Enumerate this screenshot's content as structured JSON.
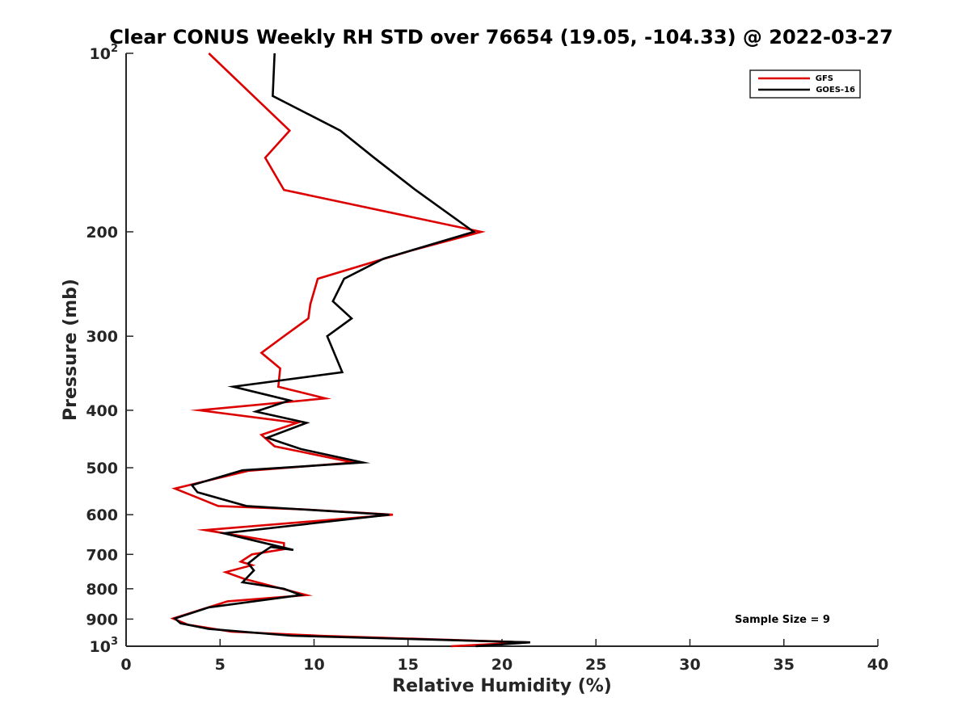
{
  "chart_data": {
    "type": "line",
    "title": "Clear CONUS Weekly RH STD over 76654 (19.05, -104.33) @ 2022-03-27",
    "xlabel": "Relative Humidity (%)",
    "ylabel": "Pressure (mb)",
    "xlim": [
      0,
      40
    ],
    "ylim": [
      100,
      1000
    ],
    "yscale": "log",
    "y_reversed": true,
    "grid": false,
    "legend_position": "top-right",
    "x_ticks": [
      "0",
      "5",
      "10",
      "15",
      "20",
      "25",
      "30",
      "35",
      "40"
    ],
    "x_tick_values": [
      0,
      5,
      10,
      15,
      20,
      25,
      30,
      35,
      40
    ],
    "y_ticks": [
      {
        "value": 100,
        "base": "10",
        "exp": "2"
      },
      {
        "value": 200,
        "base": "200",
        "exp": ""
      },
      {
        "value": 300,
        "base": "300",
        "exp": ""
      },
      {
        "value": 400,
        "base": "400",
        "exp": ""
      },
      {
        "value": 500,
        "base": "500",
        "exp": ""
      },
      {
        "value": 600,
        "base": "600",
        "exp": ""
      },
      {
        "value": 700,
        "base": "700",
        "exp": ""
      },
      {
        "value": 800,
        "base": "800",
        "exp": ""
      },
      {
        "value": 900,
        "base": "900",
        "exp": ""
      },
      {
        "value": 1000,
        "base": "10",
        "exp": "3"
      }
    ],
    "annotation": "Sample Size = 9",
    "series": [
      {
        "name": "GFS",
        "color": "#dd0000",
        "points": [
          {
            "x": 4.4,
            "y": 100
          },
          {
            "x": 8.7,
            "y": 135
          },
          {
            "x": 7.4,
            "y": 150
          },
          {
            "x": 8.4,
            "y": 170
          },
          {
            "x": 18.9,
            "y": 200
          },
          {
            "x": 15.2,
            "y": 215
          },
          {
            "x": 10.2,
            "y": 240
          },
          {
            "x": 9.8,
            "y": 265
          },
          {
            "x": 9.7,
            "y": 280
          },
          {
            "x": 8.4,
            "y": 300
          },
          {
            "x": 7.2,
            "y": 320
          },
          {
            "x": 8.2,
            "y": 340
          },
          {
            "x": 8.1,
            "y": 365
          },
          {
            "x": 10.6,
            "y": 382
          },
          {
            "x": 3.9,
            "y": 400
          },
          {
            "x": 9.1,
            "y": 420
          },
          {
            "x": 7.2,
            "y": 440
          },
          {
            "x": 7.9,
            "y": 460
          },
          {
            "x": 12.1,
            "y": 490
          },
          {
            "x": 6.5,
            "y": 506
          },
          {
            "x": 2.6,
            "y": 542
          },
          {
            "x": 4.9,
            "y": 580
          },
          {
            "x": 9.5,
            "y": 588
          },
          {
            "x": 14.2,
            "y": 600
          },
          {
            "x": 4.2,
            "y": 637
          },
          {
            "x": 8.4,
            "y": 670
          },
          {
            "x": 8.4,
            "y": 686
          },
          {
            "x": 6.7,
            "y": 700
          },
          {
            "x": 6.1,
            "y": 720
          },
          {
            "x": 6.7,
            "y": 730
          },
          {
            "x": 5.3,
            "y": 750
          },
          {
            "x": 6.3,
            "y": 770
          },
          {
            "x": 9.6,
            "y": 820
          },
          {
            "x": 5.4,
            "y": 840
          },
          {
            "x": 2.5,
            "y": 898
          },
          {
            "x": 3.3,
            "y": 920
          },
          {
            "x": 5.6,
            "y": 945
          },
          {
            "x": 10.3,
            "y": 960
          },
          {
            "x": 21.3,
            "y": 985
          },
          {
            "x": 17.3,
            "y": 1000
          }
        ]
      },
      {
        "name": "GOES-16",
        "color": "#000000",
        "points": [
          {
            "x": 7.9,
            "y": 100
          },
          {
            "x": 7.8,
            "y": 118
          },
          {
            "x": 11.4,
            "y": 135
          },
          {
            "x": 13.2,
            "y": 150
          },
          {
            "x": 15.4,
            "y": 170
          },
          {
            "x": 18.5,
            "y": 200
          },
          {
            "x": 13.7,
            "y": 222
          },
          {
            "x": 11.6,
            "y": 240
          },
          {
            "x": 11.0,
            "y": 262
          },
          {
            "x": 12.0,
            "y": 280
          },
          {
            "x": 10.7,
            "y": 300
          },
          {
            "x": 11.5,
            "y": 345
          },
          {
            "x": 5.7,
            "y": 365
          },
          {
            "x": 8.7,
            "y": 385
          },
          {
            "x": 6.9,
            "y": 402
          },
          {
            "x": 9.6,
            "y": 420
          },
          {
            "x": 7.5,
            "y": 445
          },
          {
            "x": 9.3,
            "y": 465
          },
          {
            "x": 12.6,
            "y": 490
          },
          {
            "x": 6.2,
            "y": 505
          },
          {
            "x": 3.5,
            "y": 535
          },
          {
            "x": 3.8,
            "y": 550
          },
          {
            "x": 6.4,
            "y": 580
          },
          {
            "x": 14.0,
            "y": 600
          },
          {
            "x": 5.2,
            "y": 645
          },
          {
            "x": 8.9,
            "y": 688
          },
          {
            "x": 7.7,
            "y": 680
          },
          {
            "x": 7.1,
            "y": 700
          },
          {
            "x": 6.5,
            "y": 725
          },
          {
            "x": 6.8,
            "y": 745
          },
          {
            "x": 6.2,
            "y": 780
          },
          {
            "x": 8.4,
            "y": 800
          },
          {
            "x": 9.3,
            "y": 820
          },
          {
            "x": 4.4,
            "y": 860
          },
          {
            "x": 2.6,
            "y": 898
          },
          {
            "x": 2.9,
            "y": 915
          },
          {
            "x": 4.4,
            "y": 935
          },
          {
            "x": 8.8,
            "y": 960
          },
          {
            "x": 21.5,
            "y": 985
          },
          {
            "x": 18.6,
            "y": 1000
          }
        ]
      }
    ]
  }
}
